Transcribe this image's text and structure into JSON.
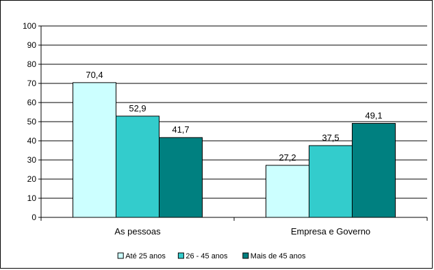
{
  "chart_data": {
    "type": "bar",
    "categories": [
      "As pessoas",
      "Empresa e Governo"
    ],
    "series": [
      {
        "name": "Até 25 anos",
        "color": "#ccffff",
        "values": [
          70.4,
          27.2
        ],
        "labels": [
          "70,4",
          "27,2"
        ]
      },
      {
        "name": "26 - 45 anos",
        "color": "#33cccc",
        "values": [
          52.9,
          37.5
        ],
        "labels": [
          "52,9",
          "37,5"
        ]
      },
      {
        "name": "Mais de 45 anos",
        "color": "#008080",
        "values": [
          41.7,
          49.1
        ],
        "labels": [
          "41,7",
          "49,1"
        ]
      }
    ],
    "ylim": [
      0,
      100
    ],
    "yticks": [
      0,
      10,
      20,
      30,
      40,
      50,
      60,
      70,
      80,
      90,
      100
    ],
    "grid": true,
    "legend_position": "bottom",
    "title": "",
    "xlabel": "",
    "ylabel": ""
  }
}
